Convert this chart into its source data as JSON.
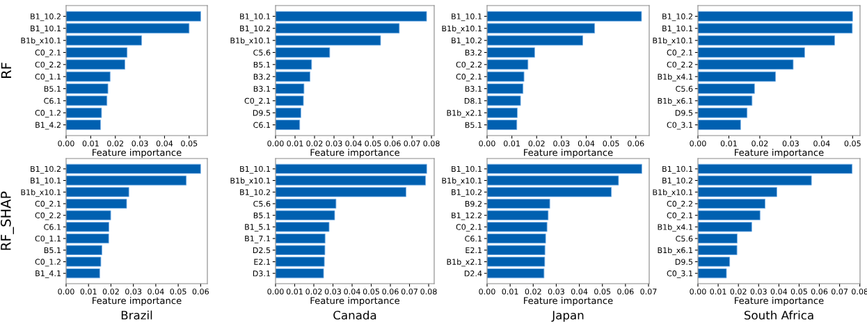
{
  "chart_data": [
    {
      "type": "bar",
      "orientation": "horizontal",
      "ylabel": "RF",
      "xlabel": "Feature importance",
      "color": "#0060b0",
      "categories": [
        "B1_10.2",
        "B1_10.1",
        "B1b_x10.1",
        "C0_2.1",
        "C0_2.2",
        "C0_1.1",
        "B5.1",
        "C6.1",
        "C0_1.2",
        "B1_4.2"
      ],
      "values": [
        0.0547,
        0.05,
        0.0307,
        0.0248,
        0.0239,
        0.0179,
        0.017,
        0.0166,
        0.0144,
        0.014
      ],
      "xlim": [
        0,
        0.0574
      ],
      "xticks": [
        {
          "value": 0,
          "label": "0.00"
        },
        {
          "value": 0.01,
          "label": "0.01"
        },
        {
          "value": 0.02,
          "label": "0.02"
        },
        {
          "value": 0.03,
          "label": "0.03"
        },
        {
          "value": 0.04,
          "label": "0.04"
        },
        {
          "value": 0.05,
          "label": "0.05"
        }
      ]
    },
    {
      "type": "bar",
      "orientation": "horizontal",
      "xlabel": "Feature importance",
      "color": "#0060b0",
      "categories": [
        "B1_10.1",
        "B1_10.2",
        "B1b_x10.1",
        "C5.6",
        "B5.1",
        "B3.2",
        "B3.1",
        "C0_2.1",
        "D9.5",
        "C6.1"
      ],
      "values": [
        0.0775,
        0.0635,
        0.0539,
        0.0278,
        0.0185,
        0.0177,
        0.0146,
        0.0143,
        0.013,
        0.0124
      ],
      "xlim": [
        0,
        0.0814
      ],
      "xticks": [
        {
          "value": 0,
          "label": "0.00"
        },
        {
          "value": 0.01,
          "label": "0.01"
        },
        {
          "value": 0.02,
          "label": "0.02"
        },
        {
          "value": 0.03,
          "label": "0.03"
        },
        {
          "value": 0.04,
          "label": "0.04"
        },
        {
          "value": 0.05,
          "label": "0.05"
        },
        {
          "value": 0.06,
          "label": "0.06"
        },
        {
          "value": 0.07,
          "label": "0.07"
        },
        {
          "value": 0.08,
          "label": "0.08"
        }
      ]
    },
    {
      "type": "bar",
      "orientation": "horizontal",
      "xlabel": "Feature importance",
      "color": "#0060b0",
      "categories": [
        "B1_10.1",
        "B1b_x10.1",
        "B1_10.2",
        "B3.2",
        "C0_2.2",
        "C0_2.1",
        "B3.1",
        "D8.1",
        "B1b_x2.1",
        "B5.1"
      ],
      "values": [
        0.0623,
        0.0434,
        0.0386,
        0.0192,
        0.0165,
        0.0149,
        0.0145,
        0.0135,
        0.0122,
        0.012
      ],
      "xlim": [
        0,
        0.0654
      ],
      "xticks": [
        {
          "value": 0,
          "label": "0.00"
        },
        {
          "value": 0.01,
          "label": "0.01"
        },
        {
          "value": 0.02,
          "label": "0.02"
        },
        {
          "value": 0.03,
          "label": "0.03"
        },
        {
          "value": 0.04,
          "label": "0.04"
        },
        {
          "value": 0.05,
          "label": "0.05"
        },
        {
          "value": 0.06,
          "label": "0.06"
        }
      ]
    },
    {
      "type": "bar",
      "orientation": "horizontal",
      "xlabel": "Feature importance",
      "color": "#0060b0",
      "categories": [
        "B1_10.2",
        "B1_10.1",
        "B1b_x10.1",
        "C0_2.1",
        "C0_2.2",
        "B1b_x4.1",
        "C5.6",
        "B1b_x6.1",
        "D9.5",
        "C0_3.1"
      ],
      "values": [
        0.05,
        0.0499,
        0.0442,
        0.0345,
        0.0308,
        0.0251,
        0.0183,
        0.0175,
        0.0159,
        0.0138
      ],
      "xlim": [
        0,
        0.0524
      ],
      "xticks": [
        {
          "value": 0,
          "label": "0.00"
        },
        {
          "value": 0.01,
          "label": "0.01"
        },
        {
          "value": 0.02,
          "label": "0.02"
        },
        {
          "value": 0.03,
          "label": "0.03"
        },
        {
          "value": 0.04,
          "label": "0.04"
        },
        {
          "value": 0.05,
          "label": "0.05"
        }
      ]
    },
    {
      "type": "bar",
      "orientation": "horizontal",
      "ylabel": "RF_SHAP",
      "xlabel": "Feature importance",
      "annotations": [
        "Brazil"
      ],
      "color": "#0060b0",
      "categories": [
        "B1_10.2",
        "B1_10.1",
        "B1b_x10.1",
        "C0_2.1",
        "C0_2.2",
        "C6.1",
        "C0_1.1",
        "B5.1",
        "C0_1.2",
        "B1_4.1"
      ],
      "values": [
        0.06,
        0.0536,
        0.028,
        0.027,
        0.0199,
        0.0191,
        0.019,
        0.016,
        0.0155,
        0.015
      ],
      "xlim": [
        0,
        0.063
      ],
      "xticks": [
        {
          "value": 0,
          "label": "0.00"
        },
        {
          "value": 0.01,
          "label": "0.01"
        },
        {
          "value": 0.02,
          "label": "0.02"
        },
        {
          "value": 0.03,
          "label": "0.03"
        },
        {
          "value": 0.04,
          "label": "0.04"
        },
        {
          "value": 0.05,
          "label": "0.05"
        },
        {
          "value": 0.06,
          "label": "0.06"
        }
      ]
    },
    {
      "type": "bar",
      "orientation": "horizontal",
      "xlabel": "Feature importance",
      "annotations": [
        "Canada"
      ],
      "color": "#0060b0",
      "categories": [
        "B1_10.1",
        "B1b_x10.1",
        "B1_10.2",
        "C5.6",
        "B5.1",
        "B1_5.1",
        "B1_7.1",
        "D2.5",
        "E2.1",
        "D3.1"
      ],
      "values": [
        0.079,
        0.0784,
        0.0682,
        0.0316,
        0.0309,
        0.028,
        0.0259,
        0.0258,
        0.0255,
        0.0251
      ],
      "xlim": [
        0,
        0.0829
      ],
      "xticks": [
        {
          "value": 0,
          "label": "0.00"
        },
        {
          "value": 0.01,
          "label": "0.01"
        },
        {
          "value": 0.02,
          "label": "0.02"
        },
        {
          "value": 0.03,
          "label": "0.03"
        },
        {
          "value": 0.04,
          "label": "0.04"
        },
        {
          "value": 0.05,
          "label": "0.05"
        },
        {
          "value": 0.06,
          "label": "0.06"
        },
        {
          "value": 0.07,
          "label": "0.07"
        },
        {
          "value": 0.08,
          "label": "0.08"
        }
      ]
    },
    {
      "type": "bar",
      "orientation": "horizontal",
      "xlabel": "Feature importance",
      "annotations": [
        "Japan"
      ],
      "color": "#0060b0",
      "categories": [
        "B1_10.1",
        "B1b_x10.1",
        "B1_10.2",
        "B9.2",
        "B1_12.2",
        "C0_2.1",
        "C6.1",
        "E2.1",
        "B1b_x2.1",
        "D2.4"
      ],
      "values": [
        0.0671,
        0.057,
        0.0539,
        0.0272,
        0.0265,
        0.026,
        0.0254,
        0.0251,
        0.025,
        0.0247
      ],
      "xlim": [
        0,
        0.0703
      ],
      "xticks": [
        {
          "value": 0,
          "label": "0.00"
        },
        {
          "value": 0.01,
          "label": "0.01"
        },
        {
          "value": 0.02,
          "label": "0.02"
        },
        {
          "value": 0.03,
          "label": "0.03"
        },
        {
          "value": 0.04,
          "label": "0.04"
        },
        {
          "value": 0.05,
          "label": "0.05"
        },
        {
          "value": 0.06,
          "label": "0.06"
        },
        {
          "value": 0.07,
          "label": "0.07"
        }
      ]
    },
    {
      "type": "bar",
      "orientation": "horizontal",
      "xlabel": "Feature importance",
      "annotations": [
        "South Africa"
      ],
      "color": "#0060b0",
      "categories": [
        "B1_10.1",
        "B1_10.2",
        "B1b_x10.1",
        "C0_2.2",
        "C0_2.1",
        "B1b_x4.1",
        "C5.6",
        "B1b_x6.1",
        "D9.5",
        "C0_3.1"
      ],
      "values": [
        0.0762,
        0.0561,
        0.039,
        0.0332,
        0.0307,
        0.0266,
        0.0194,
        0.0193,
        0.0157,
        0.0141
      ],
      "xlim": [
        0,
        0.0801
      ],
      "xticks": [
        {
          "value": 0,
          "label": "0.00"
        },
        {
          "value": 0.01,
          "label": "0.01"
        },
        {
          "value": 0.02,
          "label": "0.02"
        },
        {
          "value": 0.03,
          "label": "0.03"
        },
        {
          "value": 0.04,
          "label": "0.04"
        },
        {
          "value": 0.05,
          "label": "0.05"
        },
        {
          "value": 0.06,
          "label": "0.06"
        },
        {
          "value": 0.07,
          "label": "0.07"
        },
        {
          "value": 0.08,
          "label": "0.08"
        }
      ]
    }
  ]
}
